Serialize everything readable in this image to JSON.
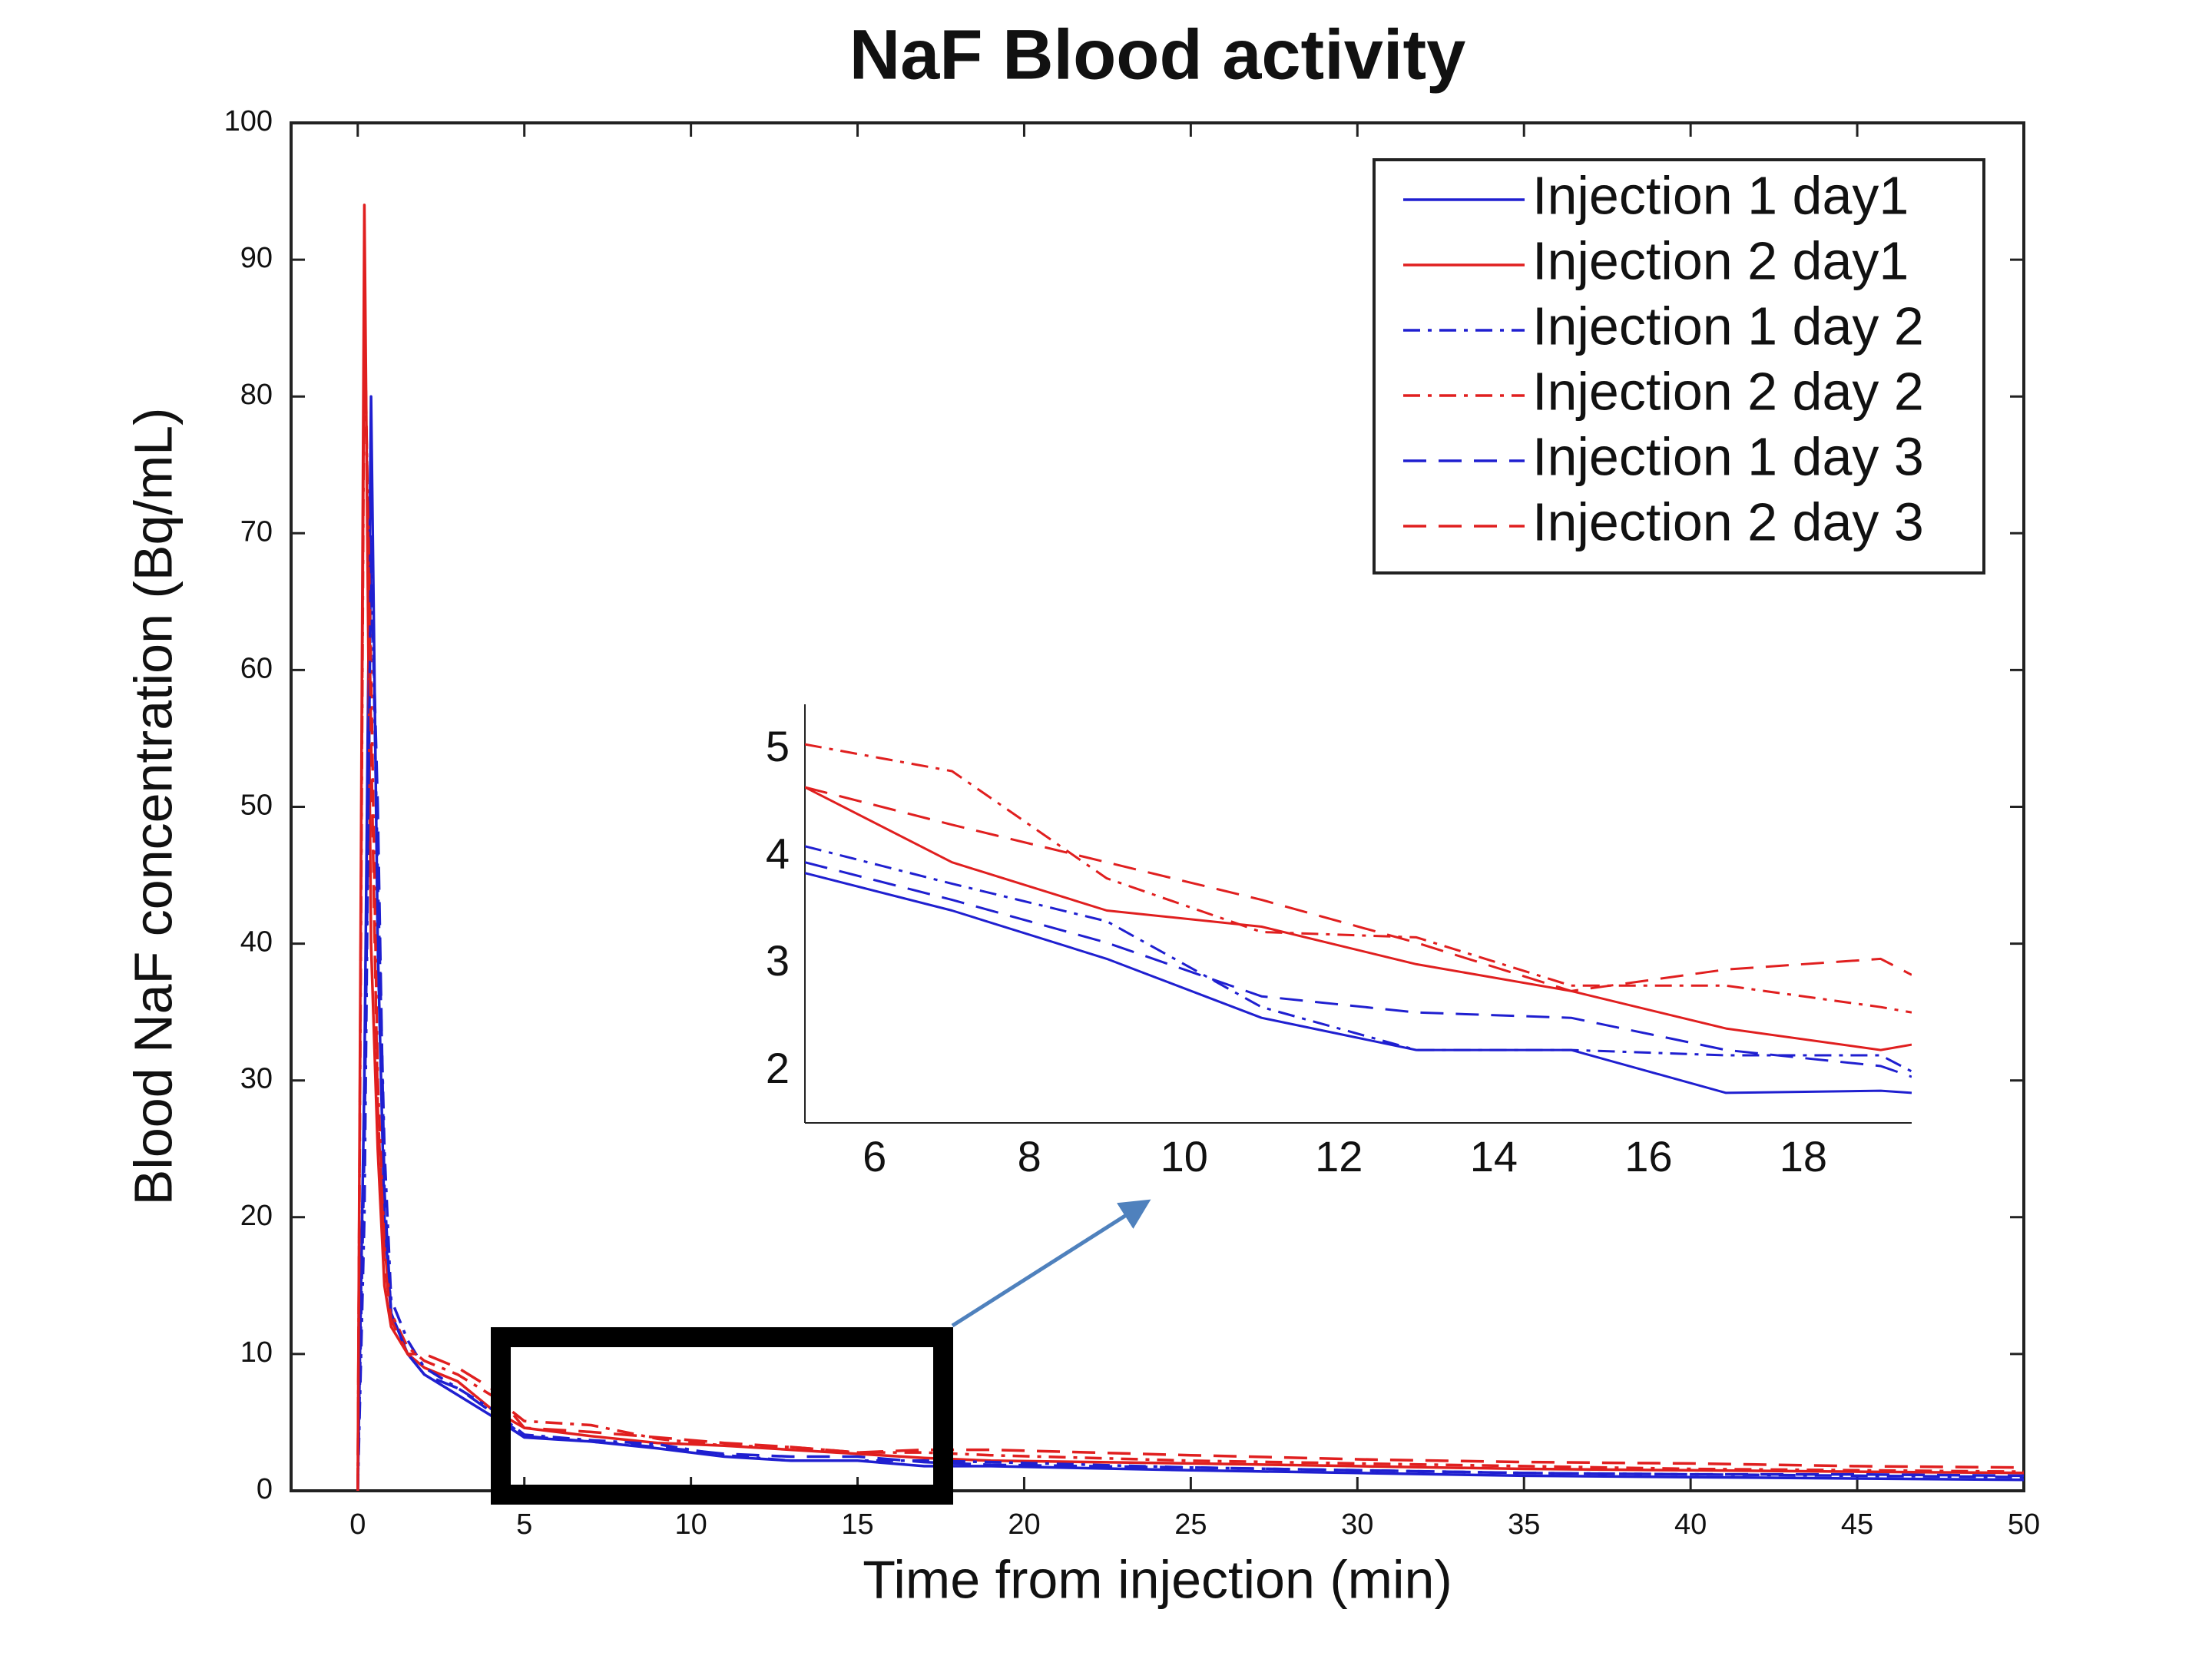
{
  "chart_data": [
    {
      "type": "line",
      "title": "NaF Blood activity",
      "x_label": "Time from injection (min)",
      "y_label": "Blood NaF concentration (Bq/mL)",
      "xlim": [
        -2,
        50
      ],
      "ylim": [
        0,
        100
      ],
      "xticks": [
        0,
        5,
        10,
        15,
        20,
        25,
        30,
        35,
        40,
        45,
        50
      ],
      "yticks": [
        0,
        10,
        20,
        30,
        40,
        50,
        60,
        70,
        80,
        90,
        100
      ],
      "legend": "upper right",
      "x": [
        0,
        0.2,
        0.4,
        0.6,
        0.8,
        1,
        1.5,
        2,
        3,
        4,
        5,
        7,
        9,
        11,
        13,
        15,
        17,
        19,
        25,
        30,
        35,
        40,
        45,
        50
      ],
      "series": [
        {
          "name": "Injection 1 day1",
          "color": "#1f1fd0",
          "dash": "solid",
          "values": [
            0,
            30,
            80,
            40,
            20,
            13,
            10,
            8.5,
            7,
            5.5,
            3.9,
            3.6,
            3.1,
            2.5,
            2.2,
            2.2,
            1.8,
            1.8,
            1.5,
            1.3,
            1.1,
            1.0,
            0.9,
            0.8
          ]
        },
        {
          "name": "Injection 2 day1",
          "color": "#e01f1f",
          "dash": "solid",
          "values": [
            0,
            94,
            40,
            25,
            15,
            12,
            10,
            9,
            8,
            6,
            4.6,
            4.0,
            3.5,
            3.3,
            3.0,
            2.7,
            2.4,
            2.2,
            2.0,
            1.8,
            1.6,
            1.5,
            1.4,
            1.3
          ]
        },
        {
          "name": "Injection 1 day 2",
          "color": "#1f1fd0",
          "dash": "dashdot",
          "values": [
            0,
            20,
            70,
            45,
            25,
            14,
            11,
            9,
            7.5,
            6,
            4.1,
            3.7,
            3.4,
            2.6,
            2.2,
            2.2,
            2.2,
            2.1,
            1.7,
            1.5,
            1.3,
            1.2,
            1.1,
            1.0
          ]
        },
        {
          "name": "Injection 2 day 2",
          "color": "#e01f1f",
          "dash": "dashdot",
          "values": [
            0,
            85,
            60,
            30,
            18,
            13,
            10.5,
            9.5,
            8.5,
            7,
            5.1,
            4.8,
            3.8,
            3.3,
            3.2,
            2.8,
            2.8,
            2.6,
            2.2,
            2.0,
            1.8,
            1.6,
            1.5,
            1.4
          ]
        },
        {
          "name": "Injection 1 day 3",
          "color": "#1f1fd0",
          "dash": "dashed",
          "values": [
            0,
            25,
            68,
            50,
            22,
            13,
            10,
            8.5,
            7.5,
            5.8,
            4.0,
            3.6,
            3.2,
            2.7,
            2.5,
            2.5,
            2.1,
            1.9,
            1.7,
            1.5,
            1.3,
            1.2,
            1.2,
            1.1
          ]
        },
        {
          "name": "Injection 2 day 3",
          "color": "#e01f1f",
          "dash": "dashed",
          "values": [
            0,
            88,
            55,
            28,
            17,
            12.5,
            10,
            10,
            9,
            7.5,
            4.6,
            4.3,
            3.9,
            3.5,
            3.2,
            2.8,
            3.0,
            3.0,
            2.6,
            2.3,
            2.1,
            2.0,
            1.8,
            1.7
          ]
        }
      ]
    },
    {
      "type": "line",
      "xlim": [
        5.1,
        19.4
      ],
      "ylim": [
        1.52,
        5.28
      ],
      "xticks": [
        6,
        8,
        10,
        12,
        14,
        16,
        18
      ],
      "yticks": [
        2,
        3,
        4,
        5
      ],
      "x": [
        5.1,
        7,
        9,
        11,
        13,
        15,
        17,
        19,
        19.4
      ],
      "series": [
        {
          "color": "#1f1fd0",
          "dash": "solid",
          "values": [
            3.85,
            3.5,
            3.05,
            2.5,
            2.2,
            2.2,
            1.8,
            1.82,
            1.8
          ]
        },
        {
          "color": "#e01f1f",
          "dash": "solid",
          "values": [
            4.65,
            3.95,
            3.5,
            3.35,
            3.0,
            2.75,
            2.4,
            2.2,
            2.25
          ]
        },
        {
          "color": "#1f1fd0",
          "dash": "dashdot",
          "values": [
            4.1,
            3.75,
            3.4,
            2.6,
            2.2,
            2.2,
            2.15,
            2.15,
            2.0
          ]
        },
        {
          "color": "#e01f1f",
          "dash": "dashdot",
          "values": [
            5.05,
            4.8,
            3.8,
            3.3,
            3.25,
            2.8,
            2.8,
            2.6,
            2.55
          ]
        },
        {
          "color": "#1f1fd0",
          "dash": "dashed",
          "values": [
            3.95,
            3.6,
            3.2,
            2.7,
            2.55,
            2.5,
            2.2,
            2.05,
            1.95
          ]
        },
        {
          "color": "#e01f1f",
          "dash": "dashed",
          "values": [
            4.65,
            4.3,
            3.95,
            3.6,
            3.2,
            2.75,
            2.95,
            3.05,
            2.9
          ]
        }
      ]
    }
  ]
}
